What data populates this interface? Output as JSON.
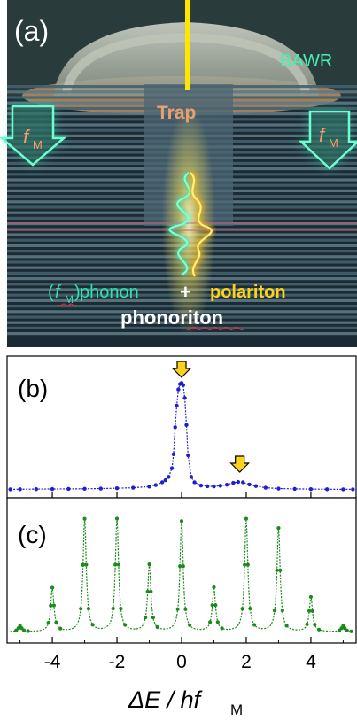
{
  "panel_a": {
    "label": "(a)",
    "bawr_label": "BAWR",
    "trap_label": "Trap",
    "fm_left": {
      "f": "f",
      "sub": "M"
    },
    "fm_right": {
      "f": "f",
      "sub": "M"
    },
    "caption_open": "(",
    "caption_f": "f",
    "caption_sub": "M",
    "caption_close": ")",
    "phonon_text": " phonon",
    "plus": "+",
    "polariton_text": "polariton",
    "phonoriton_text": "phonoriton",
    "colors": {
      "background_dark": "#1a2a33",
      "layer_light": "#6f8a96",
      "layer_dark": "#3b5360",
      "phonon": "#2fe0b0",
      "polariton": "#ffd21a",
      "bawr": "#44f0b0",
      "trap": "#e8a070",
      "beam": "#ffe600"
    }
  },
  "chart_data": [
    {
      "type": "line",
      "panel": "(b)",
      "color": "#1f1fd0",
      "xlim": [
        -5.4,
        5.4
      ],
      "ylim": [
        0,
        1.05
      ],
      "x": [
        -5.3,
        -5,
        -4.5,
        -4,
        -3.5,
        -3,
        -2.5,
        -2,
        -1.5,
        -1,
        -0.8,
        -0.6,
        -0.5,
        -0.4,
        -0.3,
        -0.25,
        -0.2,
        -0.15,
        -0.1,
        -0.05,
        0,
        0.05,
        0.1,
        0.15,
        0.2,
        0.3,
        0.4,
        0.6,
        0.8,
        1,
        1.2,
        1.4,
        1.6,
        1.75,
        1.9,
        2.1,
        2.3,
        2.6,
        3,
        3.5,
        4,
        4.5,
        5,
        5.3
      ],
      "y": [
        0.005,
        0.006,
        0.007,
        0.008,
        0.009,
        0.01,
        0.012,
        0.015,
        0.02,
        0.03,
        0.045,
        0.07,
        0.09,
        0.12,
        0.2,
        0.33,
        0.58,
        0.78,
        0.93,
        0.98,
        0.99,
        0.97,
        0.85,
        0.6,
        0.32,
        0.12,
        0.07,
        0.04,
        0.033,
        0.032,
        0.038,
        0.048,
        0.065,
        0.073,
        0.07,
        0.05,
        0.035,
        0.02,
        0.012,
        0.009,
        0.007,
        0.006,
        0.005,
        0.005
      ],
      "markers": [
        {
          "x": 0,
          "label": "⇩"
        },
        {
          "x": 1.8,
          "label": "⇩"
        }
      ]
    },
    {
      "type": "line",
      "panel": "(c)",
      "color": "#1a8a1a",
      "xlim": [
        -5.4,
        5.4
      ],
      "ylim": [
        0,
        1.05
      ],
      "peaks": [
        {
          "x": -5,
          "h": 0.05
        },
        {
          "x": -4,
          "h": 0.38
        },
        {
          "x": -3,
          "h": 0.98
        },
        {
          "x": -2,
          "h": 0.98
        },
        {
          "x": -1,
          "h": 0.58
        },
        {
          "x": 0,
          "h": 0.96
        },
        {
          "x": 1,
          "h": 0.38
        },
        {
          "x": 2,
          "h": 0.98
        },
        {
          "x": 3,
          "h": 0.9
        },
        {
          "x": 4,
          "h": 0.3
        },
        {
          "x": 5,
          "h": 0.05
        }
      ],
      "baseline": 0.02
    }
  ],
  "axis": {
    "ticks": [
      -4,
      -2,
      0,
      2,
      4
    ],
    "tick_labels": [
      "-4",
      "-2",
      "0",
      "2",
      "4"
    ],
    "xlabel_main": "ΔE / hf",
    "xlabel_sub": "M"
  },
  "panel_b_label": "(b)",
  "panel_c_label": "(c)"
}
